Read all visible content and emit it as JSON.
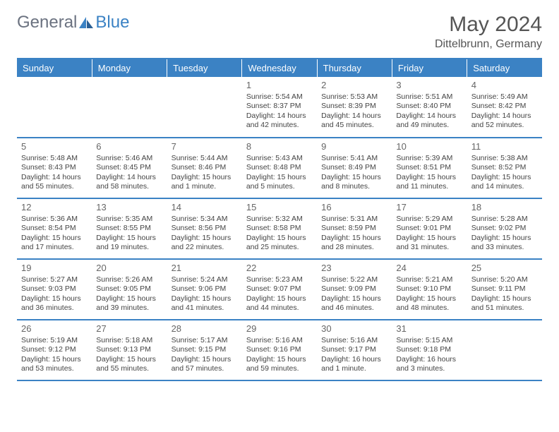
{
  "logo": {
    "text1": "General",
    "text2": "Blue"
  },
  "title": "May 2024",
  "location": "Dittelbrunn, Germany",
  "colors": {
    "header_bg": "#3b82c4",
    "header_text": "#ffffff",
    "rule": "#3b82c4",
    "logo_gray": "#6b7280",
    "logo_blue": "#3b82c4",
    "body_text": "#444444",
    "title_text": "#555555"
  },
  "daynames": [
    "Sunday",
    "Monday",
    "Tuesday",
    "Wednesday",
    "Thursday",
    "Friday",
    "Saturday"
  ],
  "weeks": [
    [
      null,
      null,
      null,
      {
        "n": "1",
        "sr": "5:54 AM",
        "ss": "8:37 PM",
        "dl": "14 hours and 42 minutes."
      },
      {
        "n": "2",
        "sr": "5:53 AM",
        "ss": "8:39 PM",
        "dl": "14 hours and 45 minutes."
      },
      {
        "n": "3",
        "sr": "5:51 AM",
        "ss": "8:40 PM",
        "dl": "14 hours and 49 minutes."
      },
      {
        "n": "4",
        "sr": "5:49 AM",
        "ss": "8:42 PM",
        "dl": "14 hours and 52 minutes."
      }
    ],
    [
      {
        "n": "5",
        "sr": "5:48 AM",
        "ss": "8:43 PM",
        "dl": "14 hours and 55 minutes."
      },
      {
        "n": "6",
        "sr": "5:46 AM",
        "ss": "8:45 PM",
        "dl": "14 hours and 58 minutes."
      },
      {
        "n": "7",
        "sr": "5:44 AM",
        "ss": "8:46 PM",
        "dl": "15 hours and 1 minute."
      },
      {
        "n": "8",
        "sr": "5:43 AM",
        "ss": "8:48 PM",
        "dl": "15 hours and 5 minutes."
      },
      {
        "n": "9",
        "sr": "5:41 AM",
        "ss": "8:49 PM",
        "dl": "15 hours and 8 minutes."
      },
      {
        "n": "10",
        "sr": "5:39 AM",
        "ss": "8:51 PM",
        "dl": "15 hours and 11 minutes."
      },
      {
        "n": "11",
        "sr": "5:38 AM",
        "ss": "8:52 PM",
        "dl": "15 hours and 14 minutes."
      }
    ],
    [
      {
        "n": "12",
        "sr": "5:36 AM",
        "ss": "8:54 PM",
        "dl": "15 hours and 17 minutes."
      },
      {
        "n": "13",
        "sr": "5:35 AM",
        "ss": "8:55 PM",
        "dl": "15 hours and 19 minutes."
      },
      {
        "n": "14",
        "sr": "5:34 AM",
        "ss": "8:56 PM",
        "dl": "15 hours and 22 minutes."
      },
      {
        "n": "15",
        "sr": "5:32 AM",
        "ss": "8:58 PM",
        "dl": "15 hours and 25 minutes."
      },
      {
        "n": "16",
        "sr": "5:31 AM",
        "ss": "8:59 PM",
        "dl": "15 hours and 28 minutes."
      },
      {
        "n": "17",
        "sr": "5:29 AM",
        "ss": "9:01 PM",
        "dl": "15 hours and 31 minutes."
      },
      {
        "n": "18",
        "sr": "5:28 AM",
        "ss": "9:02 PM",
        "dl": "15 hours and 33 minutes."
      }
    ],
    [
      {
        "n": "19",
        "sr": "5:27 AM",
        "ss": "9:03 PM",
        "dl": "15 hours and 36 minutes."
      },
      {
        "n": "20",
        "sr": "5:26 AM",
        "ss": "9:05 PM",
        "dl": "15 hours and 39 minutes."
      },
      {
        "n": "21",
        "sr": "5:24 AM",
        "ss": "9:06 PM",
        "dl": "15 hours and 41 minutes."
      },
      {
        "n": "22",
        "sr": "5:23 AM",
        "ss": "9:07 PM",
        "dl": "15 hours and 44 minutes."
      },
      {
        "n": "23",
        "sr": "5:22 AM",
        "ss": "9:09 PM",
        "dl": "15 hours and 46 minutes."
      },
      {
        "n": "24",
        "sr": "5:21 AM",
        "ss": "9:10 PM",
        "dl": "15 hours and 48 minutes."
      },
      {
        "n": "25",
        "sr": "5:20 AM",
        "ss": "9:11 PM",
        "dl": "15 hours and 51 minutes."
      }
    ],
    [
      {
        "n": "26",
        "sr": "5:19 AM",
        "ss": "9:12 PM",
        "dl": "15 hours and 53 minutes."
      },
      {
        "n": "27",
        "sr": "5:18 AM",
        "ss": "9:13 PM",
        "dl": "15 hours and 55 minutes."
      },
      {
        "n": "28",
        "sr": "5:17 AM",
        "ss": "9:15 PM",
        "dl": "15 hours and 57 minutes."
      },
      {
        "n": "29",
        "sr": "5:16 AM",
        "ss": "9:16 PM",
        "dl": "15 hours and 59 minutes."
      },
      {
        "n": "30",
        "sr": "5:16 AM",
        "ss": "9:17 PM",
        "dl": "16 hours and 1 minute."
      },
      {
        "n": "31",
        "sr": "5:15 AM",
        "ss": "9:18 PM",
        "dl": "16 hours and 3 minutes."
      },
      null
    ]
  ],
  "labels": {
    "sunrise": "Sunrise:",
    "sunset": "Sunset:",
    "daylight": "Daylight:"
  }
}
